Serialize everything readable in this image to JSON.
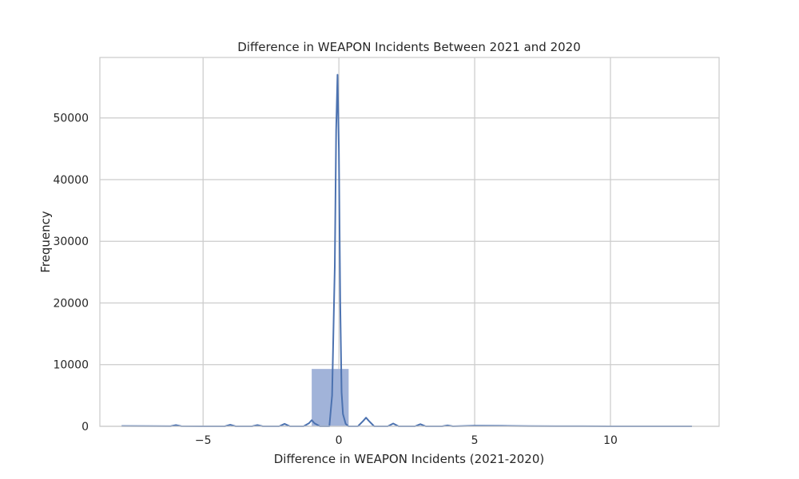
{
  "chart_data": {
    "type": "histogram",
    "title": "Difference in WEAPON Incidents Between 2021 and 2020",
    "xlabel": "Difference in WEAPON Incidents (2021-2020)",
    "ylabel": "Frequency",
    "xlim": [
      -8.8,
      14.0
    ],
    "ylim": [
      0,
      59800
    ],
    "xticks": [
      -5,
      0,
      5,
      10
    ],
    "xtick_labels": [
      "−5",
      "0",
      "5",
      "10"
    ],
    "yticks": [
      0,
      10000,
      20000,
      30000,
      40000,
      50000
    ],
    "ytick_labels": [
      "0",
      "10000",
      "20000",
      "30000",
      "40000",
      "50000"
    ],
    "grid": true,
    "colors": {
      "bar": "#a1b3d9",
      "line": "#4c72b0",
      "grid": "#cccccc",
      "frame": "#cccccc"
    },
    "bins": [
      {
        "x0": -7.9,
        "x1": -6.54,
        "value": 60
      },
      {
        "x0": -6.54,
        "x1": -5.18,
        "value": 70
      },
      {
        "x0": -5.18,
        "x1": -3.82,
        "value": 90
      },
      {
        "x0": -3.82,
        "x1": -2.46,
        "value": 110
      },
      {
        "x0": -2.46,
        "x1": -1.1,
        "value": 120
      },
      {
        "x0": -1.0,
        "x1": 0.36,
        "value": 9300
      },
      {
        "x0": 0.36,
        "x1": 1.72,
        "value": 110
      },
      {
        "x0": 1.72,
        "x1": 3.08,
        "value": 100
      },
      {
        "x0": 3.08,
        "x1": 4.44,
        "value": 90
      },
      {
        "x0": 4.44,
        "x1": 5.8,
        "value": 80
      },
      {
        "x0": 5.8,
        "x1": 7.16,
        "value": 70
      },
      {
        "x0": 7.16,
        "x1": 8.52,
        "value": 60
      },
      {
        "x0": 8.52,
        "x1": 9.88,
        "value": 50
      },
      {
        "x0": 9.88,
        "x1": 11.24,
        "value": 40
      },
      {
        "x0": 11.24,
        "x1": 12.6,
        "value": 40
      },
      {
        "x0": 12.6,
        "x1": 13.0,
        "value": 30
      }
    ],
    "kde": {
      "x": [
        -8,
        -7,
        -6.2,
        -6,
        -5.8,
        -5,
        -4.2,
        -4,
        -3.8,
        -3.2,
        -3,
        -2.8,
        -2.2,
        -2,
        -1.8,
        -1.3,
        -1.1,
        -1,
        -0.9,
        -0.7,
        -0.35,
        -0.25,
        -0.15,
        -0.1,
        -0.05,
        0,
        0.05,
        0.1,
        0.15,
        0.25,
        0.35,
        0.7,
        0.9,
        1,
        1.1,
        1.3,
        1.8,
        2,
        2.2,
        2.8,
        3,
        3.2,
        3.8,
        4,
        4.2,
        5,
        6,
        7,
        8,
        9,
        10,
        11,
        12,
        13
      ],
      "y": [
        50,
        30,
        20,
        200,
        20,
        0,
        0,
        250,
        0,
        0,
        200,
        0,
        0,
        400,
        0,
        0,
        500,
        1000,
        500,
        0,
        0,
        5000,
        26000,
        48000,
        57000,
        45000,
        20000,
        5500,
        2000,
        400,
        0,
        0,
        900,
        1400,
        900,
        0,
        0,
        450,
        0,
        0,
        350,
        0,
        0,
        150,
        0,
        100,
        80,
        30,
        10,
        10,
        0,
        0,
        0,
        0
      ]
    }
  }
}
